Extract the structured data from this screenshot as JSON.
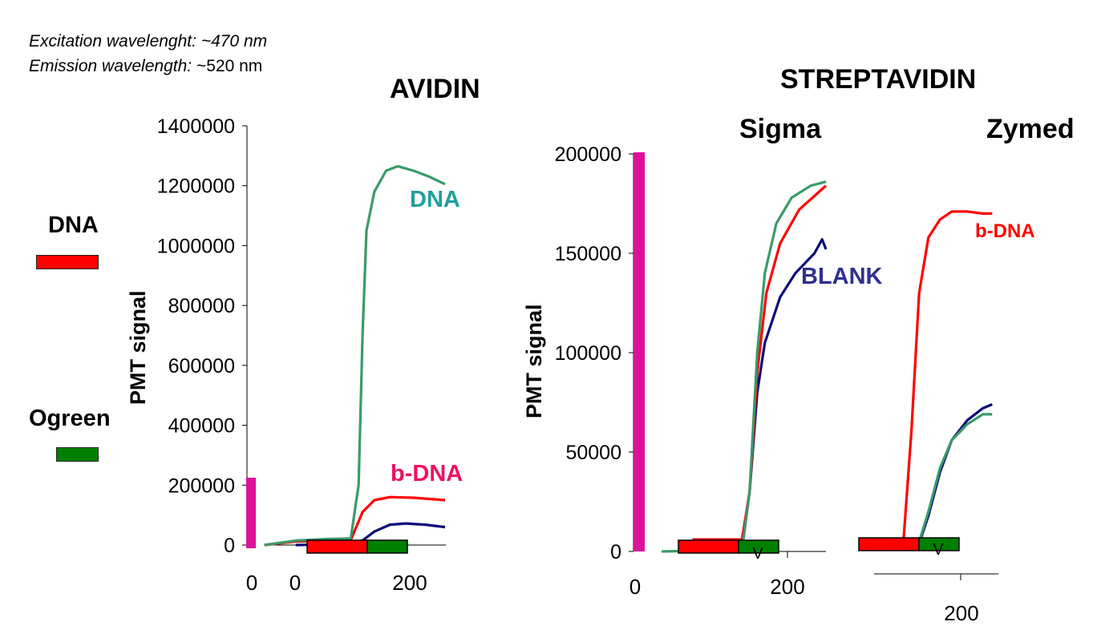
{
  "notes": {
    "excitation_label": "Excitation wavelenght:",
    "excitation_value": "~470 nm",
    "emission_label": "Emission wavelength:",
    "emission_value": "~520 nm"
  },
  "legend": {
    "items": [
      {
        "label": "DNA",
        "color": "#ff0000"
      },
      {
        "label": "Ogreen",
        "color": "#008000"
      }
    ]
  },
  "titles": {
    "avidin": "AVIDIN",
    "streptavidin": "STREPTAVIDIN",
    "sigma": "Sigma",
    "zymed": "Zymed"
  },
  "colors": {
    "dna_series": "#3a9a6a",
    "bdna_series": "#ff0000",
    "blank_series": "#0a0a7a",
    "dna_label": "#20a0a0",
    "bdna_label_avidin": "#ee1166",
    "bdna_label_zymed": "#ff0000",
    "blank_label": "#303090",
    "marker": "#dd1199",
    "bar_red": "#ff0000",
    "bar_green": "#008000"
  },
  "chart_data": [
    {
      "type": "line",
      "title": "AVIDIN",
      "ylabel": "PMT signal",
      "xlabel": "",
      "ylim": [
        0,
        1400000
      ],
      "yticks": [
        "0",
        "200000",
        "400000",
        "600000",
        "800000",
        "1000000",
        "1200000",
        "1400000"
      ],
      "xticks": [
        "0",
        "0",
        "200"
      ],
      "series": [
        {
          "name": "DNA",
          "points": [
            [
              20,
              0
            ],
            [
              60,
              15000
            ],
            [
              100,
              20000
            ],
            [
              130,
              22000
            ],
            [
              140,
              200000
            ],
            [
              145,
              700000
            ],
            [
              150,
              1050000
            ],
            [
              160,
              1180000
            ],
            [
              175,
              1250000
            ],
            [
              190,
              1265000
            ],
            [
              210,
              1250000
            ],
            [
              230,
              1230000
            ],
            [
              250,
              1205000
            ]
          ]
        },
        {
          "name": "b-DNA",
          "points": [
            [
              20,
              0
            ],
            [
              60,
              12000
            ],
            [
              100,
              14000
            ],
            [
              130,
              16000
            ],
            [
              145,
              110000
            ],
            [
              160,
              150000
            ],
            [
              180,
              160000
            ],
            [
              210,
              158000
            ],
            [
              250,
              150000
            ]
          ]
        },
        {
          "name": "",
          "points": [
            [
              60,
              0
            ],
            [
              100,
              2000
            ],
            [
              130,
              3000
            ],
            [
              145,
              15000
            ],
            [
              160,
              45000
            ],
            [
              180,
              68000
            ],
            [
              200,
              72000
            ],
            [
              225,
              68000
            ],
            [
              250,
              60000
            ]
          ]
        }
      ],
      "bars": [
        {
          "color": "red",
          "range": [
            80,
            150
          ]
        },
        {
          "color": "green",
          "range": [
            150,
            200
          ]
        }
      ]
    },
    {
      "type": "line",
      "title": "Sigma",
      "ylabel": "PMT signal",
      "xlabel": "",
      "ylim": [
        0,
        200000
      ],
      "yticks": [
        "0",
        "50000",
        "100000",
        "150000",
        "200000"
      ],
      "xticks": [
        "0",
        "200"
      ],
      "series": [
        {
          "name": "",
          "points": [
            [
              35,
              0
            ],
            [
              100,
              500
            ],
            [
              140,
              1000
            ],
            [
              150,
              30000
            ],
            [
              160,
              100000
            ],
            [
              170,
              140000
            ],
            [
              185,
              165000
            ],
            [
              205,
              178000
            ],
            [
              230,
              184000
            ],
            [
              250,
              186000
            ]
          ]
        },
        {
          "name": "",
          "points": [
            [
              75,
              6000
            ],
            [
              140,
              6000
            ],
            [
              150,
              30000
            ],
            [
              160,
              90000
            ],
            [
              172,
              130000
            ],
            [
              190,
              155000
            ],
            [
              215,
              172000
            ],
            [
              250,
              184000
            ]
          ]
        },
        {
          "name": "BLANK",
          "points": [
            [
              140,
              1000
            ],
            [
              150,
              30000
            ],
            [
              160,
              80000
            ],
            [
              170,
              105000
            ],
            [
              190,
              128000
            ],
            [
              210,
              140000
            ],
            [
              235,
              150000
            ],
            [
              245,
              157000
            ],
            [
              250,
              152000
            ]
          ]
        }
      ],
      "bars": [
        {
          "color": "red",
          "range": [
            58,
            140
          ]
        },
        {
          "color": "green",
          "range": [
            140,
            190
          ]
        }
      ]
    },
    {
      "type": "line",
      "title": "Zymed",
      "ylabel": "",
      "xlabel": "",
      "ylim": [
        0,
        200000
      ],
      "xticks": [
        "200"
      ],
      "series": [
        {
          "name": "b-DNA",
          "points": [
            [
              128,
              6000
            ],
            [
              138,
              60000
            ],
            [
              148,
              130000
            ],
            [
              160,
              158000
            ],
            [
              175,
              167000
            ],
            [
              190,
              171000
            ],
            [
              210,
              171000
            ],
            [
              230,
              170000
            ],
            [
              242,
              170000
            ]
          ]
        },
        {
          "name": "",
          "points": [
            [
              145,
              1000
            ],
            [
              160,
              20000
            ],
            [
              175,
              42000
            ],
            [
              190,
              56000
            ],
            [
              210,
              64000
            ],
            [
              230,
              69000
            ],
            [
              242,
              69000
            ]
          ]
        },
        {
          "name": "",
          "points": [
            [
              145,
              500
            ],
            [
              160,
              18000
            ],
            [
              175,
              40000
            ],
            [
              190,
              56000
            ],
            [
              210,
              66000
            ],
            [
              230,
              72000
            ],
            [
              242,
              74000
            ]
          ]
        }
      ],
      "bars": [
        {
          "color": "red",
          "range": [
            58,
            140
          ]
        },
        {
          "color": "green",
          "range": [
            140,
            190
          ]
        }
      ]
    }
  ]
}
